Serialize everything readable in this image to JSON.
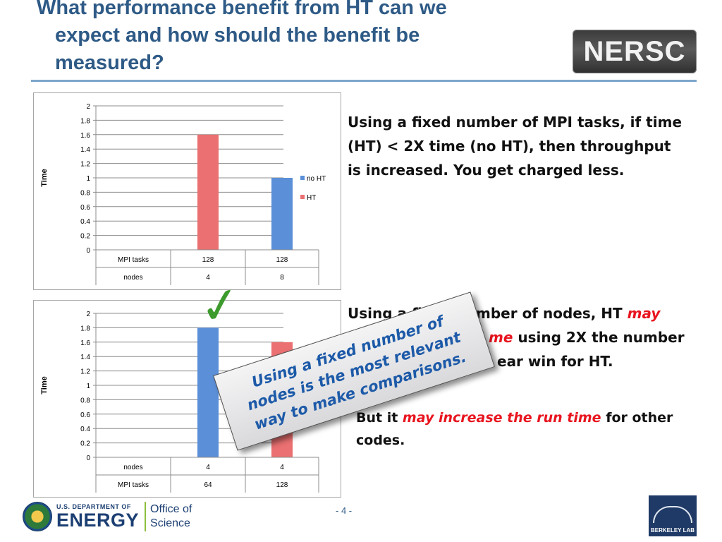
{
  "title": {
    "line1": "What performance benefit from HT can we",
    "line2": "expect and how should the benefit be",
    "line3": "measured?"
  },
  "logo_text": "NERSC",
  "chart_data": [
    {
      "type": "bar",
      "ylabel": "Time",
      "ylim": [
        0,
        2
      ],
      "yticks": [
        "0",
        "0.2",
        "0.4",
        "0.6",
        "0.8",
        "1",
        "1.2",
        "1.4",
        "1.6",
        "1.8",
        "2"
      ],
      "table_rows": [
        {
          "label": "MPI tasks",
          "cells": [
            "128",
            "128"
          ]
        },
        {
          "label": "nodes",
          "cells": [
            "4",
            "8"
          ]
        }
      ],
      "series": [
        {
          "name": "no HT",
          "color": "#5b8fd8",
          "values": [
            null,
            1.0
          ]
        },
        {
          "name": "HT",
          "color": "#ea7071",
          "values": [
            1.6,
            null
          ]
        }
      ],
      "legend": "right"
    },
    {
      "type": "bar",
      "ylabel": "Time",
      "ylim": [
        0,
        2
      ],
      "yticks": [
        "0",
        "0.2",
        "0.4",
        "0.6",
        "0.8",
        "1",
        "1.2",
        "1.4",
        "1.6",
        "1.8",
        "2"
      ],
      "table_rows": [
        {
          "label": "nodes",
          "cells": [
            "4",
            "4"
          ]
        },
        {
          "label": "MPI tasks",
          "cells": [
            "64",
            "128"
          ]
        }
      ],
      "series": [
        {
          "name": "no HT",
          "color": "#5b8fd8",
          "values": [
            1.8,
            null
          ]
        },
        {
          "name": "HT",
          "color": "#ea7071",
          "values": [
            null,
            1.6
          ]
        }
      ]
    }
  ],
  "text1": "Using a fixed number of MPI tasks, if time (HT) < 2X time (no HT), then throughput is increased. You get charged less.",
  "text2": {
    "a": "Using a fixed number of nodes, HT ",
    "b": "may",
    "c": "",
    "d": "me",
    "e": " using 2X the number",
    "f": "ear win for HT."
  },
  "text3": {
    "a": "But it ",
    "b": "may increase the run time",
    "c": " for other codes."
  },
  "callout": "Using a fixed number of nodes is the most relevant way to make comparisons.",
  "footer": {
    "doe_small": "U.S. DEPARTMENT OF",
    "doe_big": "ENERGY",
    "office1": "Office of",
    "office2": "Science",
    "page": "- 4 -",
    "lab": "BERKELEY LAB"
  },
  "colors": {
    "title": "#2e5a86",
    "no_ht": "#5b8fd8",
    "ht": "#ea7071",
    "emphasis": "#e8151f",
    "callout_text": "#1d5aa8",
    "check": "#3d9a2d"
  }
}
